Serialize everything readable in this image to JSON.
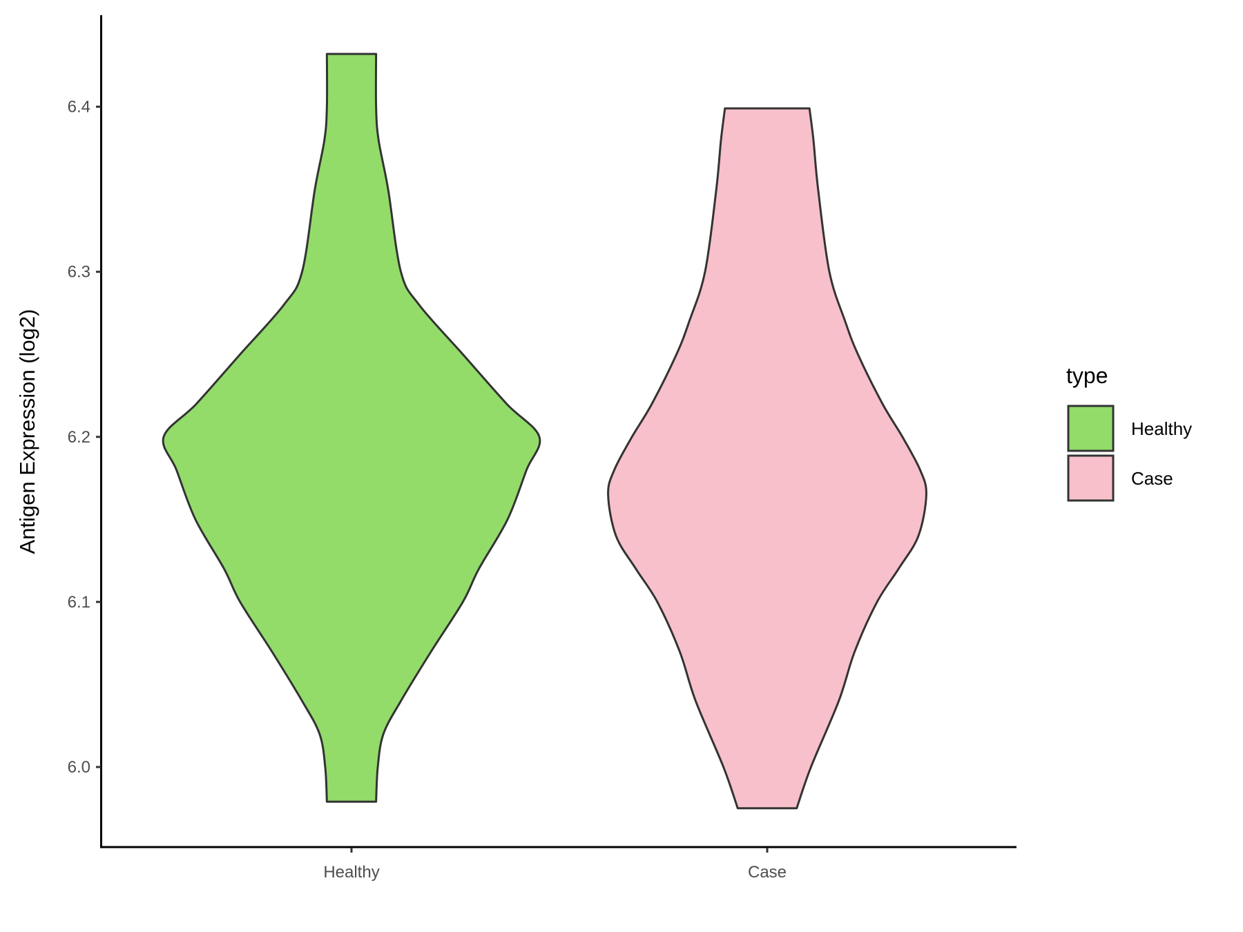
{
  "chart_data": {
    "type": "violin",
    "title": "",
    "xlabel": "",
    "ylabel": "Antigen Expression (log2)",
    "ylim": [
      5.952,
      6.455
    ],
    "yticks": [
      "6.0",
      "6.1",
      "6.2",
      "6.3",
      "6.4"
    ],
    "ytick_values": [
      6.0,
      6.1,
      6.2,
      6.3,
      6.4
    ],
    "categories": [
      "Healthy",
      "Case"
    ],
    "grid": false,
    "legend": {
      "title": "type",
      "position": "right",
      "entries": [
        "Healthy",
        "Case"
      ]
    },
    "series": [
      {
        "name": "Healthy",
        "color": "#93DC6A",
        "min": 5.979,
        "max": 6.432,
        "density_profile": [
          [
            5.979,
            0.131
          ],
          [
            6.0,
            0.14
          ],
          [
            6.02,
            0.17
          ],
          [
            6.04,
            0.263
          ],
          [
            6.07,
            0.424
          ],
          [
            6.1,
            0.593
          ],
          [
            6.12,
            0.678
          ],
          [
            6.15,
            0.831
          ],
          [
            6.18,
            0.932
          ],
          [
            6.2,
            1.0
          ],
          [
            6.22,
            0.826
          ],
          [
            6.25,
            0.593
          ],
          [
            6.28,
            0.36
          ],
          [
            6.3,
            0.263
          ],
          [
            6.35,
            0.195
          ],
          [
            6.38,
            0.144
          ],
          [
            6.4,
            0.131
          ],
          [
            6.432,
            0.131
          ]
        ]
      },
      {
        "name": "Case",
        "color": "#F7C0CB",
        "min": 5.975,
        "max": 6.399,
        "density_profile": [
          [
            5.975,
            0.157
          ],
          [
            6.0,
            0.233
          ],
          [
            6.04,
            0.381
          ],
          [
            6.07,
            0.466
          ],
          [
            6.1,
            0.585
          ],
          [
            6.12,
            0.699
          ],
          [
            6.14,
            0.805
          ],
          [
            6.165,
            0.847
          ],
          [
            6.18,
            0.814
          ],
          [
            6.2,
            0.72
          ],
          [
            6.22,
            0.614
          ],
          [
            6.25,
            0.483
          ],
          [
            6.27,
            0.415
          ],
          [
            6.3,
            0.331
          ],
          [
            6.35,
            0.271
          ],
          [
            6.38,
            0.246
          ],
          [
            6.399,
            0.225
          ]
        ]
      }
    ],
    "outline_color": "#333333"
  }
}
